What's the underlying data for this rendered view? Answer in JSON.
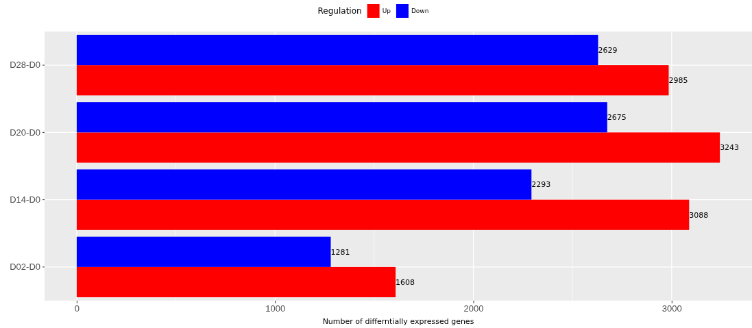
{
  "chart_data": {
    "type": "bar",
    "orientation": "horizontal",
    "categories": [
      "D28-D0",
      "D20-D0",
      "D14-D0",
      "D02-D0"
    ],
    "series": [
      {
        "name": "Up",
        "color": "#ff0000",
        "values": [
          2985,
          3243,
          3088,
          1608
        ]
      },
      {
        "name": "Down",
        "color": "#0000ff",
        "values": [
          2629,
          2675,
          2293,
          1281
        ]
      }
    ],
    "xlabel": "Number of differntially expressed genes",
    "legend_title": "Regulation",
    "legend": "top",
    "xlim": [
      -162,
      3405
    ],
    "xticks": [
      0,
      1000,
      2000,
      3000
    ],
    "grid": true,
    "data_labels": true
  }
}
